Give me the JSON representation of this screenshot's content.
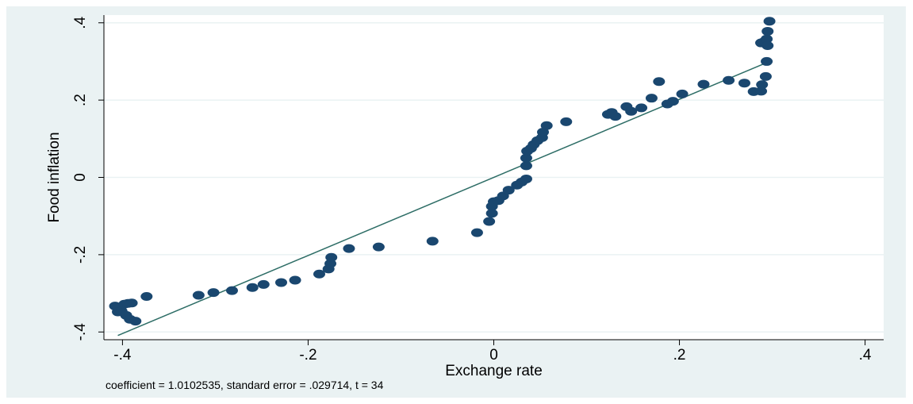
{
  "colors": {
    "outer_background": "#eaf2f3",
    "plot_background": "#ffffff",
    "gridline": "#eaf2f3",
    "marker": "#1a476f",
    "fit_line": "#2d6d66",
    "axis": "#000000"
  },
  "chart_data": {
    "type": "scatter",
    "xlabel": "Exchange rate",
    "ylabel": "Food inflation",
    "note": "coefficient = 1.0102535, standard error = .029714, t = 34",
    "xlim": [
      -0.42,
      0.42
    ],
    "ylim": [
      -0.42,
      0.42
    ],
    "grid": true,
    "legend": "none",
    "x_ticks": [
      -0.4,
      -0.2,
      0,
      0.2,
      0.4
    ],
    "x_tick_labels": [
      "-.4",
      "-.2",
      "0",
      ".2",
      ".4"
    ],
    "y_ticks": [
      -0.4,
      -0.2,
      0,
      0.2,
      0.4
    ],
    "y_tick_labels": [
      "-.4",
      "-.2",
      "0",
      ".2",
      ".4"
    ],
    "fit_line": {
      "slope": 1.0102535,
      "intercept": 0.0,
      "x_range": [
        -0.405,
        0.295
      ]
    },
    "points": [
      [
        -0.408,
        -0.333
      ],
      [
        -0.405,
        -0.348
      ],
      [
        -0.401,
        -0.346
      ],
      [
        -0.398,
        -0.328
      ],
      [
        -0.396,
        -0.357
      ],
      [
        -0.394,
        -0.326
      ],
      [
        -0.392,
        -0.367
      ],
      [
        -0.39,
        -0.325
      ],
      [
        -0.386,
        -0.372
      ],
      [
        -0.374,
        -0.308
      ],
      [
        -0.318,
        -0.305
      ],
      [
        -0.302,
        -0.298
      ],
      [
        -0.282,
        -0.293
      ],
      [
        -0.26,
        -0.285
      ],
      [
        -0.248,
        -0.277
      ],
      [
        -0.229,
        -0.272
      ],
      [
        -0.214,
        -0.266
      ],
      [
        -0.188,
        -0.25
      ],
      [
        -0.178,
        -0.237
      ],
      [
        -0.176,
        -0.223
      ],
      [
        -0.175,
        -0.207
      ],
      [
        -0.156,
        -0.184
      ],
      [
        -0.124,
        -0.18
      ],
      [
        -0.066,
        -0.165
      ],
      [
        -0.018,
        -0.143
      ],
      [
        -0.005,
        -0.114
      ],
      [
        -0.002,
        -0.093
      ],
      [
        -0.002,
        -0.075
      ],
      [
        0.0,
        -0.063
      ],
      [
        0.005,
        -0.06
      ],
      [
        0.01,
        -0.048
      ],
      [
        0.016,
        -0.033
      ],
      [
        0.025,
        -0.02
      ],
      [
        0.03,
        -0.012
      ],
      [
        0.035,
        -0.004
      ],
      [
        0.035,
        0.03
      ],
      [
        0.035,
        0.05
      ],
      [
        0.036,
        0.068
      ],
      [
        0.04,
        0.075
      ],
      [
        0.043,
        0.085
      ],
      [
        0.047,
        0.095
      ],
      [
        0.052,
        0.103
      ],
      [
        0.053,
        0.117
      ],
      [
        0.057,
        0.134
      ],
      [
        0.078,
        0.144
      ],
      [
        0.123,
        0.163
      ],
      [
        0.127,
        0.168
      ],
      [
        0.131,
        0.158
      ],
      [
        0.143,
        0.183
      ],
      [
        0.148,
        0.171
      ],
      [
        0.159,
        0.18
      ],
      [
        0.17,
        0.205
      ],
      [
        0.178,
        0.248
      ],
      [
        0.187,
        0.19
      ],
      [
        0.193,
        0.197
      ],
      [
        0.203,
        0.216
      ],
      [
        0.226,
        0.241
      ],
      [
        0.253,
        0.251
      ],
      [
        0.27,
        0.244
      ],
      [
        0.28,
        0.222
      ],
      [
        0.288,
        0.223
      ],
      [
        0.289,
        0.24
      ],
      [
        0.288,
        0.348
      ],
      [
        0.291,
        0.351
      ],
      [
        0.293,
        0.261
      ],
      [
        0.294,
        0.3
      ],
      [
        0.294,
        0.358
      ],
      [
        0.295,
        0.341
      ],
      [
        0.295,
        0.378
      ],
      [
        0.297,
        0.404
      ]
    ]
  }
}
